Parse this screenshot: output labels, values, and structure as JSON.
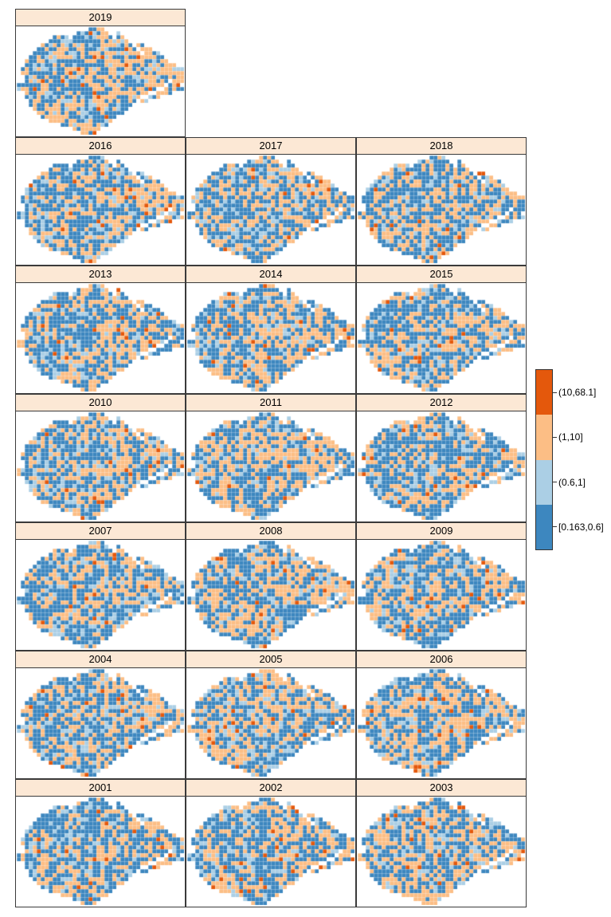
{
  "chart_data": {
    "type": "heatmap",
    "title": "",
    "subtitle": "",
    "facet_variable": "year",
    "facet_rows": [
      [
        "2019"
      ],
      [
        "2016",
        "2017",
        "2018"
      ],
      [
        "2013",
        "2014",
        "2015"
      ],
      [
        "2010",
        "2011",
        "2012"
      ],
      [
        "2007",
        "2008",
        "2009"
      ],
      [
        "2004",
        "2005",
        "2006"
      ],
      [
        "2001",
        "2002",
        "2003"
      ]
    ],
    "legend": {
      "position": "right",
      "bins": [
        {
          "key": "darkorange",
          "label": "(10,68.1]",
          "color": "#e4580c"
        },
        {
          "key": "lightorange",
          "label": "(1,10]",
          "color": "#fcbe85"
        },
        {
          "key": "lightblue",
          "label": "(0.6,1]",
          "color": "#abcfe5"
        },
        {
          "key": "blue",
          "label": "[0.163,0.6]",
          "color": "#3d87bf"
        }
      ]
    },
    "strip_fill": "#fce8d5",
    "panel_border": "#3a3a3a",
    "background": "#ffffff",
    "region_mask": [
      "..................####....................",
      "...............########..#................",
      ".........####.##########.##...............",
      "........####################..............",
      "......#######################.##..........",
      ".....#########################.###........",
      "....###########################.####......",
      "...##################################.....",
      "..####################################....",
      "..######################################..",
      ".#########################################",
      ".#########################################",
      "..########################################",
      "..####################################.###",
      "#####################################.###.",
      "###################################..#####",
      "..###############################..####...",
      "..#############################..###......",
      "...###########################.##.........",
      "...##########################.............",
      "....########################..............",
      ".....######################...............",
      "......###################.................",
      "........################..................",
      "...........############...................",
      "..............#######.....................",
      "................####......................"
    ],
    "year_params": {
      "2001": {
        "seed": 2001,
        "weights": {
          "darkorange": 0.02,
          "lightorange": 0.24,
          "lightblue": 0.16,
          "blue": 0.58
        }
      },
      "2002": {
        "seed": 2002,
        "weights": {
          "darkorange": 0.02,
          "lightorange": 0.26,
          "lightblue": 0.16,
          "blue": 0.56
        }
      },
      "2003": {
        "seed": 2003,
        "weights": {
          "darkorange": 0.02,
          "lightorange": 0.31,
          "lightblue": 0.16,
          "blue": 0.51
        }
      },
      "2004": {
        "seed": 2004,
        "weights": {
          "darkorange": 0.02,
          "lightorange": 0.27,
          "lightblue": 0.16,
          "blue": 0.55
        }
      },
      "2005": {
        "seed": 2005,
        "weights": {
          "darkorange": 0.02,
          "lightorange": 0.31,
          "lightblue": 0.16,
          "blue": 0.51
        }
      },
      "2006": {
        "seed": 2006,
        "weights": {
          "darkorange": 0.02,
          "lightorange": 0.29,
          "lightblue": 0.16,
          "blue": 0.53
        }
      },
      "2007": {
        "seed": 2007,
        "weights": {
          "darkorange": 0.02,
          "lightorange": 0.28,
          "lightblue": 0.16,
          "blue": 0.54
        }
      },
      "2008": {
        "seed": 2008,
        "weights": {
          "darkorange": 0.02,
          "lightorange": 0.31,
          "lightblue": 0.16,
          "blue": 0.51
        }
      },
      "2009": {
        "seed": 2009,
        "weights": {
          "darkorange": 0.02,
          "lightorange": 0.27,
          "lightblue": 0.16,
          "blue": 0.55
        }
      },
      "2010": {
        "seed": 2010,
        "weights": {
          "darkorange": 0.02,
          "lightorange": 0.27,
          "lightblue": 0.16,
          "blue": 0.55
        }
      },
      "2011": {
        "seed": 2011,
        "weights": {
          "darkorange": 0.02,
          "lightorange": 0.34,
          "lightblue": 0.16,
          "blue": 0.48
        }
      },
      "2012": {
        "seed": 2012,
        "weights": {
          "darkorange": 0.02,
          "lightorange": 0.27,
          "lightblue": 0.16,
          "blue": 0.55
        }
      },
      "2013": {
        "seed": 2013,
        "weights": {
          "darkorange": 0.02,
          "lightorange": 0.28,
          "lightblue": 0.16,
          "blue": 0.54
        }
      },
      "2014": {
        "seed": 2014,
        "weights": {
          "darkorange": 0.02,
          "lightorange": 0.3,
          "lightblue": 0.16,
          "blue": 0.52
        }
      },
      "2015": {
        "seed": 2015,
        "weights": {
          "darkorange": 0.02,
          "lightorange": 0.27,
          "lightblue": 0.16,
          "blue": 0.55
        }
      },
      "2016": {
        "seed": 2016,
        "weights": {
          "darkorange": 0.02,
          "lightorange": 0.29,
          "lightblue": 0.16,
          "blue": 0.53
        }
      },
      "2017": {
        "seed": 2017,
        "weights": {
          "darkorange": 0.02,
          "lightorange": 0.27,
          "lightblue": 0.16,
          "blue": 0.55
        }
      },
      "2018": {
        "seed": 2018,
        "weights": {
          "darkorange": 0.02,
          "lightorange": 0.27,
          "lightblue": 0.16,
          "blue": 0.55
        }
      },
      "2019": {
        "seed": 2019,
        "weights": {
          "darkorange": 0.02,
          "lightorange": 0.28,
          "lightblue": 0.16,
          "blue": 0.54
        }
      }
    }
  }
}
